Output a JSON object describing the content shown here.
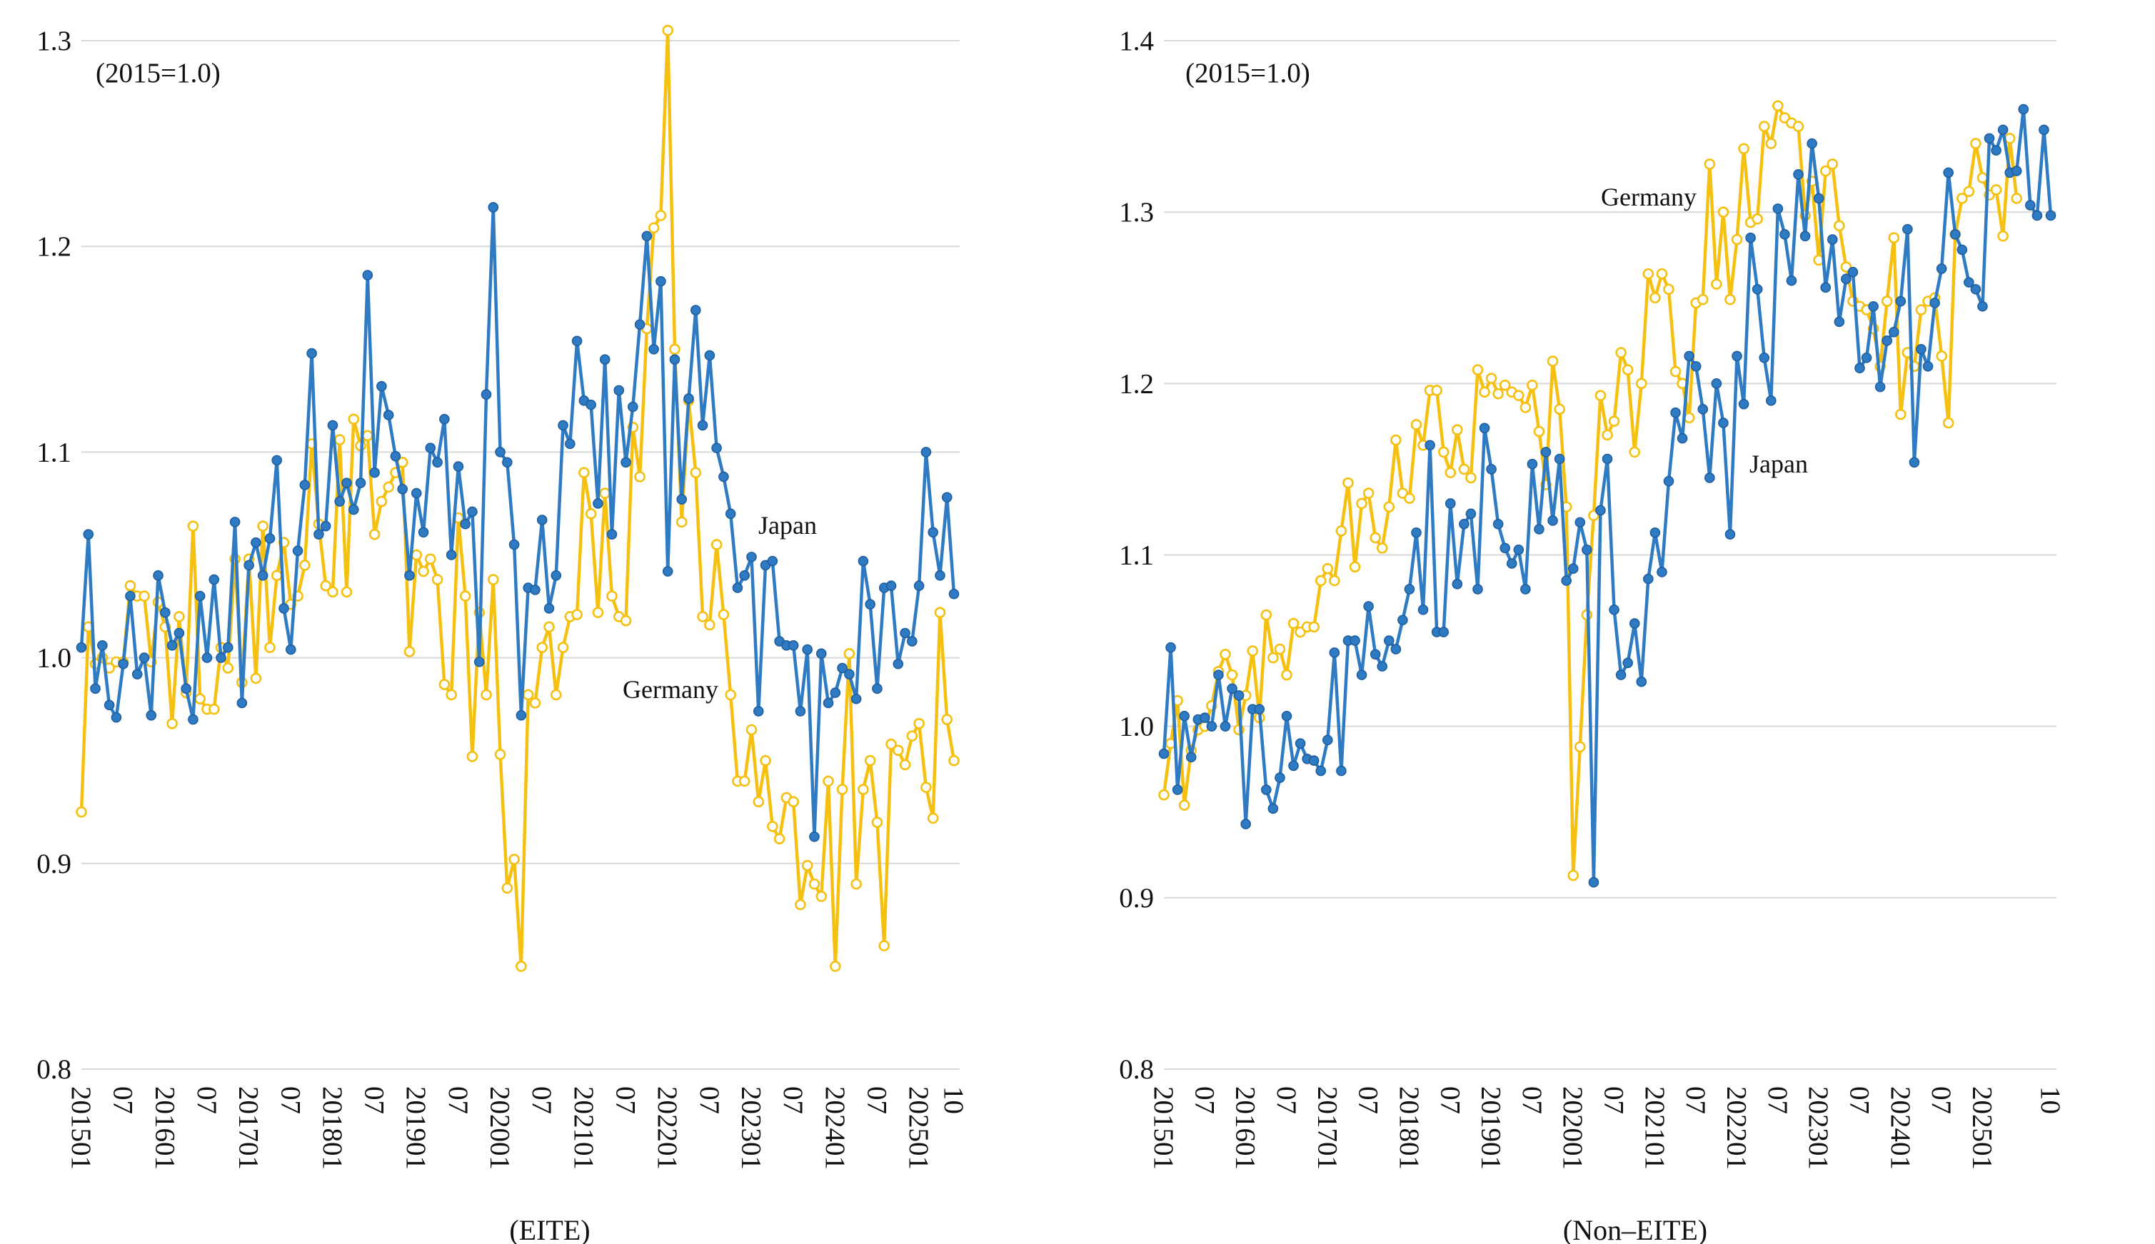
{
  "colors": {
    "japan": "#2E7BC4",
    "germany": "#F5C010",
    "grid": "#D9D9D9",
    "text": "#111111"
  },
  "chart_data": [
    {
      "type": "line",
      "title": "(EITE)",
      "annotation": "(2015=1.0)",
      "ylim": [
        0.8,
        1.3
      ],
      "yticks": [
        "0.8",
        "0.9",
        "1.0",
        "1.1",
        "1.2",
        "1.3"
      ],
      "grid": true,
      "x_start": "2015-01",
      "x_end": "2025-10",
      "x_tick_labels": [
        "201501",
        "07",
        "201601",
        "07",
        "201701",
        "07",
        "201801",
        "07",
        "201901",
        "07",
        "202001",
        "07",
        "202101",
        "07",
        "202201",
        "07",
        "202301",
        "07",
        "202401",
        "07",
        "202501",
        "10"
      ],
      "series": [
        {
          "name": "Japan",
          "color": "#2E7BC4",
          "label_anchor_index": 101,
          "values": [
            1.005,
            1.06,
            0.985,
            1.006,
            0.977,
            0.971,
            0.997,
            1.03,
            0.992,
            1.0,
            0.972,
            1.04,
            1.022,
            1.006,
            1.012,
            0.985,
            0.97,
            1.03,
            1.0,
            1.038,
            1.0,
            1.005,
            1.066,
            0.978,
            1.045,
            1.056,
            1.04,
            1.058,
            1.096,
            1.024,
            1.004,
            1.052,
            1.084,
            1.148,
            1.06,
            1.064,
            1.113,
            1.076,
            1.085,
            1.072,
            1.085,
            1.186,
            1.09,
            1.132,
            1.118,
            1.098,
            1.082,
            1.04,
            1.08,
            1.061,
            1.102,
            1.095,
            1.116,
            1.05,
            1.093,
            1.065,
            1.071,
            0.998,
            1.128,
            1.219,
            1.1,
            1.095,
            1.055,
            0.972,
            1.034,
            1.033,
            1.067,
            1.024,
            1.04,
            1.113,
            1.104,
            1.154,
            1.125,
            1.123,
            1.075,
            1.145,
            1.06,
            1.13,
            1.095,
            1.122,
            1.162,
            1.205,
            1.15,
            1.183,
            1.042,
            1.145,
            1.077,
            1.126,
            1.169,
            1.113,
            1.147,
            1.102,
            1.088,
            1.07,
            1.034,
            1.04,
            1.049,
            0.974,
            1.045,
            1.047,
            1.008,
            1.006,
            1.006,
            0.974,
            1.004,
            0.913,
            1.002,
            0.978,
            0.983,
            0.995,
            0.992,
            0.98,
            1.047,
            1.026,
            0.985,
            1.034,
            1.035,
            0.997,
            1.012,
            1.008,
            1.035,
            1.1,
            1.061,
            1.04,
            1.078,
            1.031
          ]
        },
        {
          "name": "Germany",
          "color": "#F5C010",
          "label_anchor_index": 85,
          "values": [
            0.925,
            1.015,
            0.997,
            1.0,
            0.995,
            0.998,
            0.998,
            1.035,
            1.03,
            1.03,
            0.998,
            1.027,
            1.015,
            0.968,
            1.02,
            0.983,
            1.064,
            0.98,
            0.975,
            0.975,
            1.005,
            0.995,
            1.048,
            0.988,
            1.048,
            0.99,
            1.064,
            1.005,
            1.04,
            1.056,
            1.026,
            1.03,
            1.045,
            1.104,
            1.065,
            1.035,
            1.032,
            1.106,
            1.032,
            1.116,
            1.103,
            1.108,
            1.06,
            1.076,
            1.083,
            1.09,
            1.095,
            1.003,
            1.05,
            1.042,
            1.048,
            1.038,
            0.987,
            0.982,
            1.068,
            1.03,
            0.952,
            1.022,
            0.982,
            1.038,
            0.953,
            0.888,
            0.902,
            0.85,
            0.982,
            0.978,
            1.005,
            1.015,
            0.982,
            1.005,
            1.02,
            1.021,
            1.09,
            1.07,
            1.022,
            1.08,
            1.03,
            1.02,
            1.018,
            1.112,
            1.088,
            1.16,
            1.209,
            1.215,
            1.305,
            1.15,
            1.066,
            1.125,
            1.09,
            1.02,
            1.016,
            1.055,
            1.021,
            0.982,
            0.94,
            0.94,
            0.965,
            0.93,
            0.95,
            0.918,
            0.912,
            0.932,
            0.93,
            0.88,
            0.899,
            0.89,
            0.884,
            0.94,
            0.85,
            0.936,
            1.002,
            0.89,
            0.936,
            0.95,
            0.92,
            0.86,
            0.958,
            0.955,
            0.948,
            0.962,
            0.968,
            0.937,
            0.922,
            1.022,
            0.97,
            0.95
          ]
        }
      ]
    },
    {
      "type": "line",
      "title": "(Non–EITE)",
      "annotation": "(2015=1.0)",
      "ylim": [
        0.8,
        1.4
      ],
      "yticks": [
        "0.8",
        "0.9",
        "1.0",
        "1.1",
        "1.2",
        "1.3",
        "1.4"
      ],
      "grid": true,
      "x_start": "2015-01",
      "x_end": "2025-10",
      "x_tick_labels": [
        "201501",
        "07",
        "201601",
        "07",
        "201701",
        "07",
        "201801",
        "07",
        "201901",
        "07",
        "202001",
        "07",
        "202101",
        "07",
        "202201",
        "07",
        "202301",
        "07",
        "202401",
        "07",
        "202501",
        "10"
      ],
      "series": [
        {
          "name": "Japan",
          "color": "#2E7BC4",
          "label_anchor_index": 88,
          "values": [
            0.984,
            1.046,
            0.963,
            1.006,
            0.982,
            1.004,
            1.005,
            1.0,
            1.03,
            1.0,
            1.022,
            1.018,
            0.943,
            1.01,
            1.01,
            0.963,
            0.952,
            0.97,
            1.006,
            0.977,
            0.99,
            0.981,
            0.98,
            0.974,
            0.992,
            1.043,
            0.974,
            1.05,
            1.05,
            1.03,
            1.07,
            1.042,
            1.035,
            1.05,
            1.045,
            1.062,
            1.08,
            1.113,
            1.068,
            1.164,
            1.055,
            1.055,
            1.13,
            1.083,
            1.118,
            1.124,
            1.08,
            1.174,
            1.15,
            1.118,
            1.104,
            1.095,
            1.103,
            1.08,
            1.153,
            1.115,
            1.16,
            1.12,
            1.156,
            1.085,
            1.092,
            1.119,
            1.103,
            0.909,
            1.126,
            1.156,
            1.068,
            1.03,
            1.037,
            1.06,
            1.026,
            1.086,
            1.113,
            1.09,
            1.143,
            1.183,
            1.168,
            1.216,
            1.21,
            1.185,
            1.145,
            1.2,
            1.177,
            1.112,
            1.216,
            1.188,
            1.285,
            1.255,
            1.215,
            1.19,
            1.302,
            1.287,
            1.26,
            1.322,
            1.286,
            1.34,
            1.308,
            1.256,
            1.284,
            1.236,
            1.261,
            1.265,
            1.209,
            1.215,
            1.245,
            1.198,
            1.225,
            1.23,
            1.248,
            1.29,
            1.154,
            1.22,
            1.21,
            1.247,
            1.267,
            1.323,
            1.287,
            1.278,
            1.259,
            1.255,
            1.245,
            1.343,
            1.336,
            1.348,
            1.323,
            1.324,
            1.36,
            1.304,
            1.298,
            1.348,
            1.298
          ]
        },
        {
          "name": "Germany",
          "color": "#F5C010",
          "label_anchor_index": 71,
          "values": [
            0.96,
            0.99,
            1.015,
            0.954,
            0.986,
            0.998,
            1.0,
            1.012,
            1.032,
            1.042,
            1.03,
            0.998,
            1.018,
            1.044,
            1.005,
            1.065,
            1.04,
            1.045,
            1.03,
            1.06,
            1.055,
            1.058,
            1.058,
            1.085,
            1.092,
            1.085,
            1.114,
            1.142,
            1.093,
            1.13,
            1.136,
            1.11,
            1.104,
            1.128,
            1.167,
            1.136,
            1.133,
            1.176,
            1.164,
            1.196,
            1.196,
            1.16,
            1.148,
            1.173,
            1.15,
            1.145,
            1.208,
            1.195,
            1.203,
            1.194,
            1.199,
            1.195,
            1.193,
            1.186,
            1.199,
            1.172,
            1.141,
            1.213,
            1.185,
            1.128,
            0.913,
            0.988,
            1.065,
            1.123,
            1.193,
            1.17,
            1.178,
            1.218,
            1.208,
            1.16,
            1.2,
            1.264,
            1.25,
            1.264,
            1.255,
            1.207,
            1.2,
            1.18,
            1.247,
            1.249,
            1.328,
            1.258,
            1.3,
            1.249,
            1.284,
            1.337,
            1.294,
            1.296,
            1.35,
            1.34,
            1.362,
            1.355,
            1.352,
            1.35,
            1.298,
            1.318,
            1.272,
            1.324,
            1.328,
            1.292,
            1.268,
            1.248,
            1.245,
            1.243,
            1.232,
            1.21,
            1.248,
            1.285,
            1.182,
            1.218,
            1.21,
            1.243,
            1.248,
            1.25,
            1.216,
            1.177,
            1.287,
            1.308,
            1.312,
            1.34,
            1.32,
            1.31,
            1.313,
            1.286,
            1.343,
            1.308
          ]
        }
      ]
    }
  ]
}
